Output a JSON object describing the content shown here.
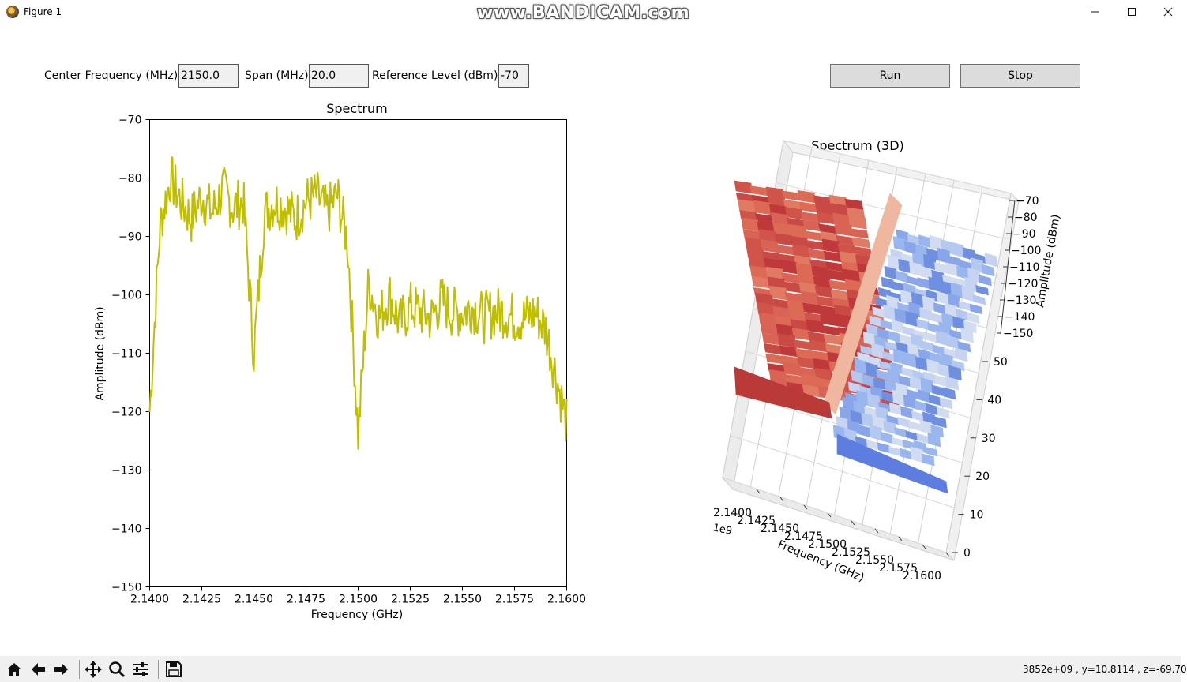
{
  "window": {
    "title": "Figure 1",
    "watermark": "www.BANDICAM.com"
  },
  "controls": {
    "center_label": "Center Frequency (MHz)",
    "center_value": "2150.0",
    "span_label": "Span (MHz)",
    "span_value": "20.0",
    "ref_label": "Reference Level (dBm)",
    "ref_value": "-70",
    "run_label": "Run",
    "stop_label": "Stop"
  },
  "chart_data": [
    {
      "type": "line",
      "title": "Spectrum",
      "xlabel": "Frequency (GHz)",
      "ylabel": "Amplitude (dBm)",
      "xlim": [
        2.14,
        2.16
      ],
      "ylim": [
        -150,
        -70
      ],
      "xticks": [
        "2.1400",
        "2.1425",
        "2.1450",
        "2.1475",
        "2.1500",
        "2.1525",
        "2.1550",
        "2.1575",
        "2.1600"
      ],
      "yticks": [
        "−70",
        "−80",
        "−90",
        "−100",
        "−110",
        "−120",
        "−130",
        "−140",
        "−150"
      ],
      "color": "#bfbf00",
      "x": [
        2.14,
        2.1405,
        2.141,
        2.1415,
        2.142,
        2.1425,
        2.143,
        2.1435,
        2.144,
        2.1445,
        2.145,
        2.1455,
        2.146,
        2.1465,
        2.147,
        2.1475,
        2.148,
        2.1485,
        2.149,
        2.1495,
        2.15,
        2.1505,
        2.151,
        2.1515,
        2.152,
        2.1525,
        2.153,
        2.1535,
        2.154,
        2.1545,
        2.155,
        2.1555,
        2.156,
        2.1565,
        2.157,
        2.1575,
        2.158,
        2.1585,
        2.159,
        2.1595,
        2.16
      ],
      "y": [
        -120,
        -88,
        -80,
        -84,
        -87,
        -83,
        -86,
        -82,
        -85,
        -84,
        -110,
        -86,
        -84,
        -85,
        -87,
        -84,
        -83,
        -86,
        -83,
        -91,
        -124,
        -98,
        -104,
        -100,
        -105,
        -102,
        -103,
        -104,
        -101,
        -103,
        -103,
        -102,
        -104,
        -103,
        -103,
        -104,
        -104,
        -103,
        -106,
        -114,
        -122
      ],
      "grid": false
    },
    {
      "type": "surface",
      "title": "Spectrum (3D)",
      "xlabel": "Frequency (GHz)",
      "zlabel": "Amplitude (dBm)",
      "x_offset_label": "1e9",
      "xticks": [
        "2.1400",
        "2.1425",
        "2.1450",
        "2.1475",
        "2.1500",
        "2.1525",
        "2.1550",
        "2.1575",
        "2.1600"
      ],
      "yticks": [
        "0",
        "10",
        "20",
        "30",
        "40",
        "50"
      ],
      "zticks": [
        "−70",
        "−80",
        "−90",
        "−100",
        "−110",
        "−120",
        "−130",
        "−140",
        "−150"
      ],
      "colormap": "coolwarm",
      "high_color": "#c83030",
      "low_color": "#7090e0"
    }
  ],
  "status": {
    "coords": "3852e+09 , y=10.8114",
    "z": ", z=-69.70"
  }
}
